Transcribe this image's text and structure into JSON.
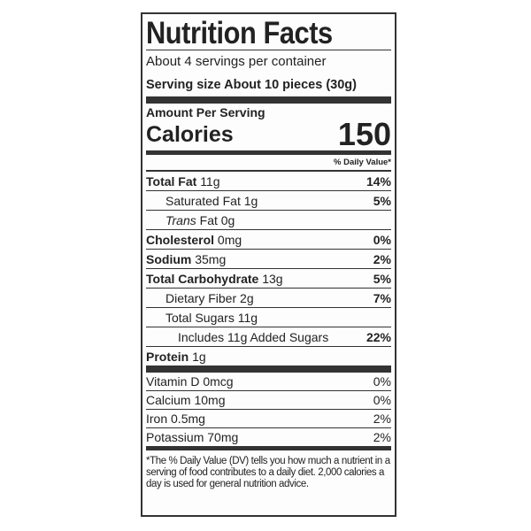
{
  "title": "Nutrition Facts",
  "servings_per_container": "About 4 servings per container",
  "serving_size": "Serving size About 10 pieces (30g)",
  "amount_per_serving": "Amount Per Serving",
  "calories": {
    "label": "Calories",
    "value": "150"
  },
  "daily_value_header": "% Daily Value*",
  "nutrients": [
    {
      "name": "Total Fat",
      "amount": "11g",
      "dv": "14%"
    },
    {
      "name": "Saturated Fat",
      "amount": "1g",
      "dv": "5%"
    },
    {
      "name": "Trans",
      "amount": "Fat 0g",
      "dv": ""
    },
    {
      "name": "Cholesterol",
      "amount": "0mg",
      "dv": "0%"
    },
    {
      "name": "Sodium",
      "amount": "35mg",
      "dv": "2%"
    },
    {
      "name": "Total Carbohydrate",
      "amount": "13g",
      "dv": "5%"
    },
    {
      "name": "Dietary Fiber",
      "amount": "2g",
      "dv": "7%"
    },
    {
      "name": "Total Sugars",
      "amount": "11g",
      "dv": ""
    },
    {
      "name": "Includes 11g Added Sugars",
      "amount": "",
      "dv": "22%"
    },
    {
      "name": "Protein",
      "amount": "1g",
      "dv": ""
    }
  ],
  "vitamins": [
    {
      "label": "Vitamin D 0mcg",
      "dv": "0%"
    },
    {
      "label": "Calcium 10mg",
      "dv": "0%"
    },
    {
      "label": "Iron 0.5mg",
      "dv": "2%"
    },
    {
      "label": "Potassium 70mg",
      "dv": "2%"
    }
  ],
  "footnote": "*The % Daily Value (DV) tells you how much a nutrient in a serving of food contributes to a daily diet. 2,000 calories a day is used for general nutrition advice."
}
